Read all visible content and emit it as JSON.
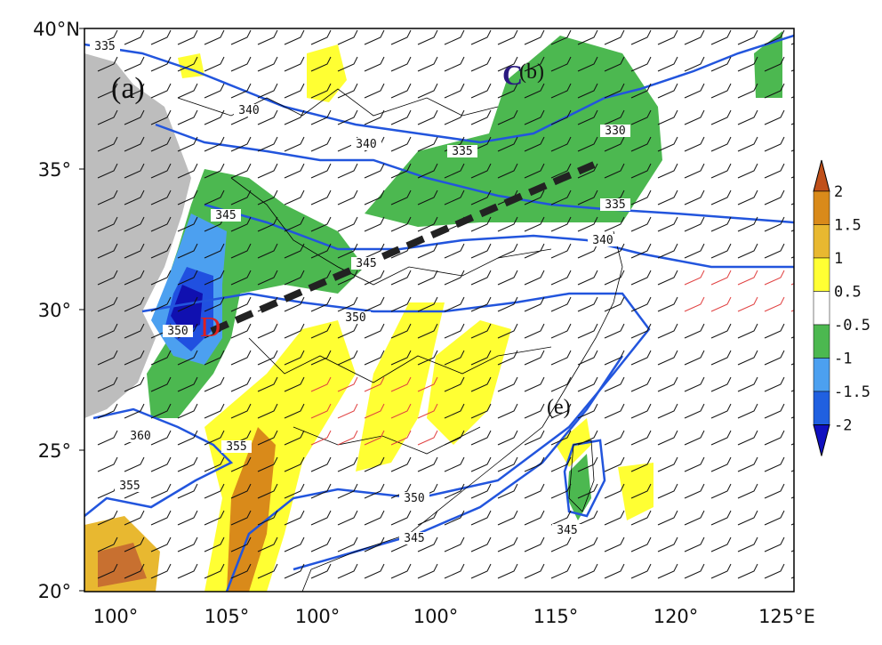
{
  "map": {
    "panel_label": "(a)",
    "x_tick_labels": [
      "100°",
      "105°",
      "100°",
      "100°",
      "115°",
      "120°",
      "125°E"
    ],
    "y_tick_labels": [
      "40°N",
      "35°",
      "30°",
      "25°",
      "20°"
    ],
    "markers": {
      "c": "C",
      "b": "(b)",
      "d": "D",
      "e": "(e)"
    },
    "contour_labels": [
      335,
      340,
      340,
      335,
      330,
      335,
      340,
      345,
      345,
      350,
      350,
      360,
      355,
      355,
      350,
      345,
      345
    ]
  },
  "colorbar": {
    "labels": [
      "2",
      "1.5",
      "1",
      "0.5",
      "-0.5",
      "-1",
      "-1.5",
      "-2"
    ]
  }
}
